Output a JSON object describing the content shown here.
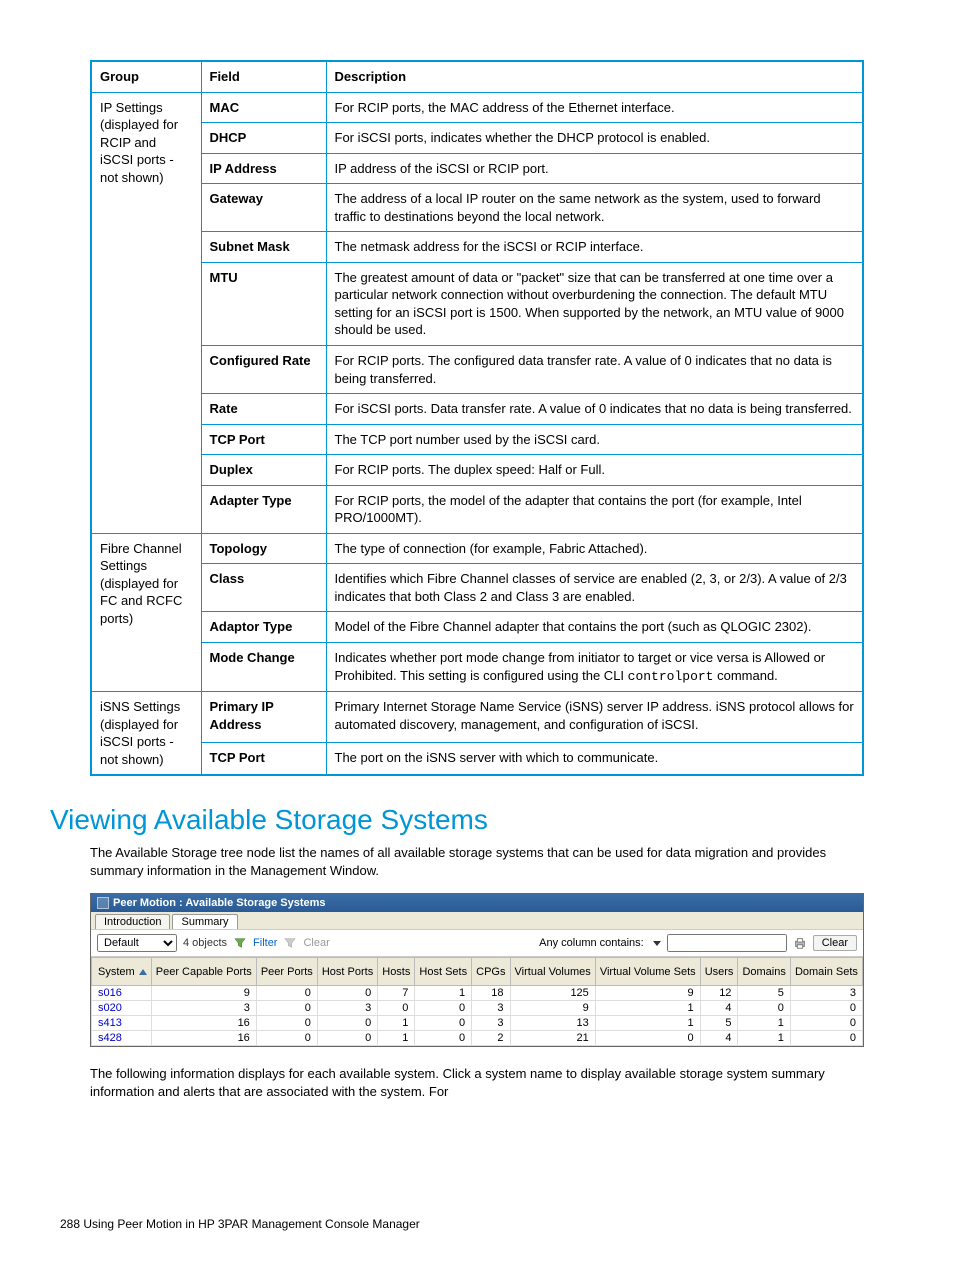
{
  "spec_table": {
    "headers": [
      "Group",
      "Field",
      "Description"
    ],
    "groups": [
      {
        "group": "IP Settings (displayed for RCIP and iSCSI ports - not shown)",
        "rows": [
          {
            "field": "MAC",
            "desc": "For RCIP ports, the MAC address of the Ethernet interface."
          },
          {
            "field": "DHCP",
            "desc": "For iSCSI ports, indicates whether the DHCP protocol is enabled."
          },
          {
            "field": "IP Address",
            "desc": "IP address of the iSCSI or RCIP port."
          },
          {
            "field": "Gateway",
            "desc": "The address of a local IP router on the same network as the system, used to forward traffic to destinations beyond the local network."
          },
          {
            "field": "Subnet Mask",
            "desc": "The netmask address for the iSCSI or RCIP interface."
          },
          {
            "field": "MTU",
            "desc": "The greatest amount of data or \"packet\" size that can be transferred at one time over a particular network connection without overburdening the connection. The default MTU setting for an iSCSI port is 1500. When supported by the network, an MTU value of 9000 should be used."
          },
          {
            "field": "Configured Rate",
            "desc": "For RCIP ports. The configured data transfer rate. A value of 0 indicates that no data is being transferred."
          },
          {
            "field": "Rate",
            "desc": "For iSCSI ports. Data transfer rate. A value of 0 indicates that no data is being transferred."
          },
          {
            "field": "TCP Port",
            "desc": "The TCP port number used by the iSCSI card."
          },
          {
            "field": "Duplex",
            "desc": "For RCIP ports. The duplex speed: Half or Full."
          },
          {
            "field": "Adapter Type",
            "desc": "For RCIP ports, the model of the adapter that contains the port (for example, Intel PRO/1000MT)."
          }
        ]
      },
      {
        "group": "Fibre Channel Settings (displayed for FC and RCFC ports)",
        "rows": [
          {
            "field": "Topology",
            "desc": "The type of connection (for example, Fabric Attached)."
          },
          {
            "field": "Class",
            "desc": "Identifies which Fibre Channel classes of service are enabled (2, 3, or 2/3). A value of 2/3 indicates that both Class 2 and Class 3 are enabled."
          },
          {
            "field": "Adaptor Type",
            "desc": "Model of the Fibre Channel adapter that contains the port (such as QLOGIC 2302)."
          },
          {
            "field": "Mode Change",
            "desc_html": "Indicates whether port mode change from initiator to target or vice versa is Allowed or Prohibited. This setting is configured using the CLI <span class='mono'>controlport</span> command."
          }
        ]
      },
      {
        "group": "iSNS Settings (displayed for iSCSI ports - not shown)",
        "rows": [
          {
            "field": "Primary IP Address",
            "desc": "Primary Internet Storage Name Service (iSNS) server IP address. iSNS protocol allows for automated discovery, management, and configuration of iSCSI."
          },
          {
            "field": "TCP Port",
            "desc": "The port on the iSNS server with which to communicate."
          }
        ]
      }
    ]
  },
  "section_title": "Viewing Available Storage Systems",
  "para1": "The Available Storage tree node list the names of all available storage systems that can be used for data migration and provides summary information in the Management Window.",
  "para2": "The following information displays for each available system. Click a system name to display available storage system summary information and alerts that are associated with the system. For",
  "shot": {
    "window_title": "Peer Motion : Available Storage Systems",
    "tabs": [
      "Introduction",
      "Summary"
    ],
    "active_tab_index": 1,
    "dropdown": "Default",
    "objects_text": "4 objects",
    "filter_text": "Filter",
    "clear_text": "Clear",
    "anycol_text": "Any column contains:",
    "clear_btn": "Clear",
    "columns": [
      "System",
      "Peer Capable Ports",
      "Peer Ports",
      "Host Ports",
      "Hosts",
      "Host Sets",
      "CPGs",
      "Virtual Volumes",
      "Virtual Volume Sets",
      "Users",
      "Domains",
      "Domain Sets"
    ],
    "rows": [
      [
        "s016",
        "9",
        "0",
        "0",
        "7",
        "1",
        "18",
        "125",
        "9",
        "12",
        "5",
        "3"
      ],
      [
        "s020",
        "3",
        "0",
        "3",
        "0",
        "0",
        "3",
        "9",
        "1",
        "4",
        "0",
        "0"
      ],
      [
        "s413",
        "16",
        "0",
        "0",
        "1",
        "0",
        "3",
        "13",
        "1",
        "5",
        "1",
        "0"
      ],
      [
        "s428",
        "16",
        "0",
        "0",
        "1",
        "0",
        "2",
        "21",
        "0",
        "4",
        "1",
        "0"
      ]
    ]
  },
  "footer": "288   Using Peer Motion in HP 3PAR Management Console Manager"
}
